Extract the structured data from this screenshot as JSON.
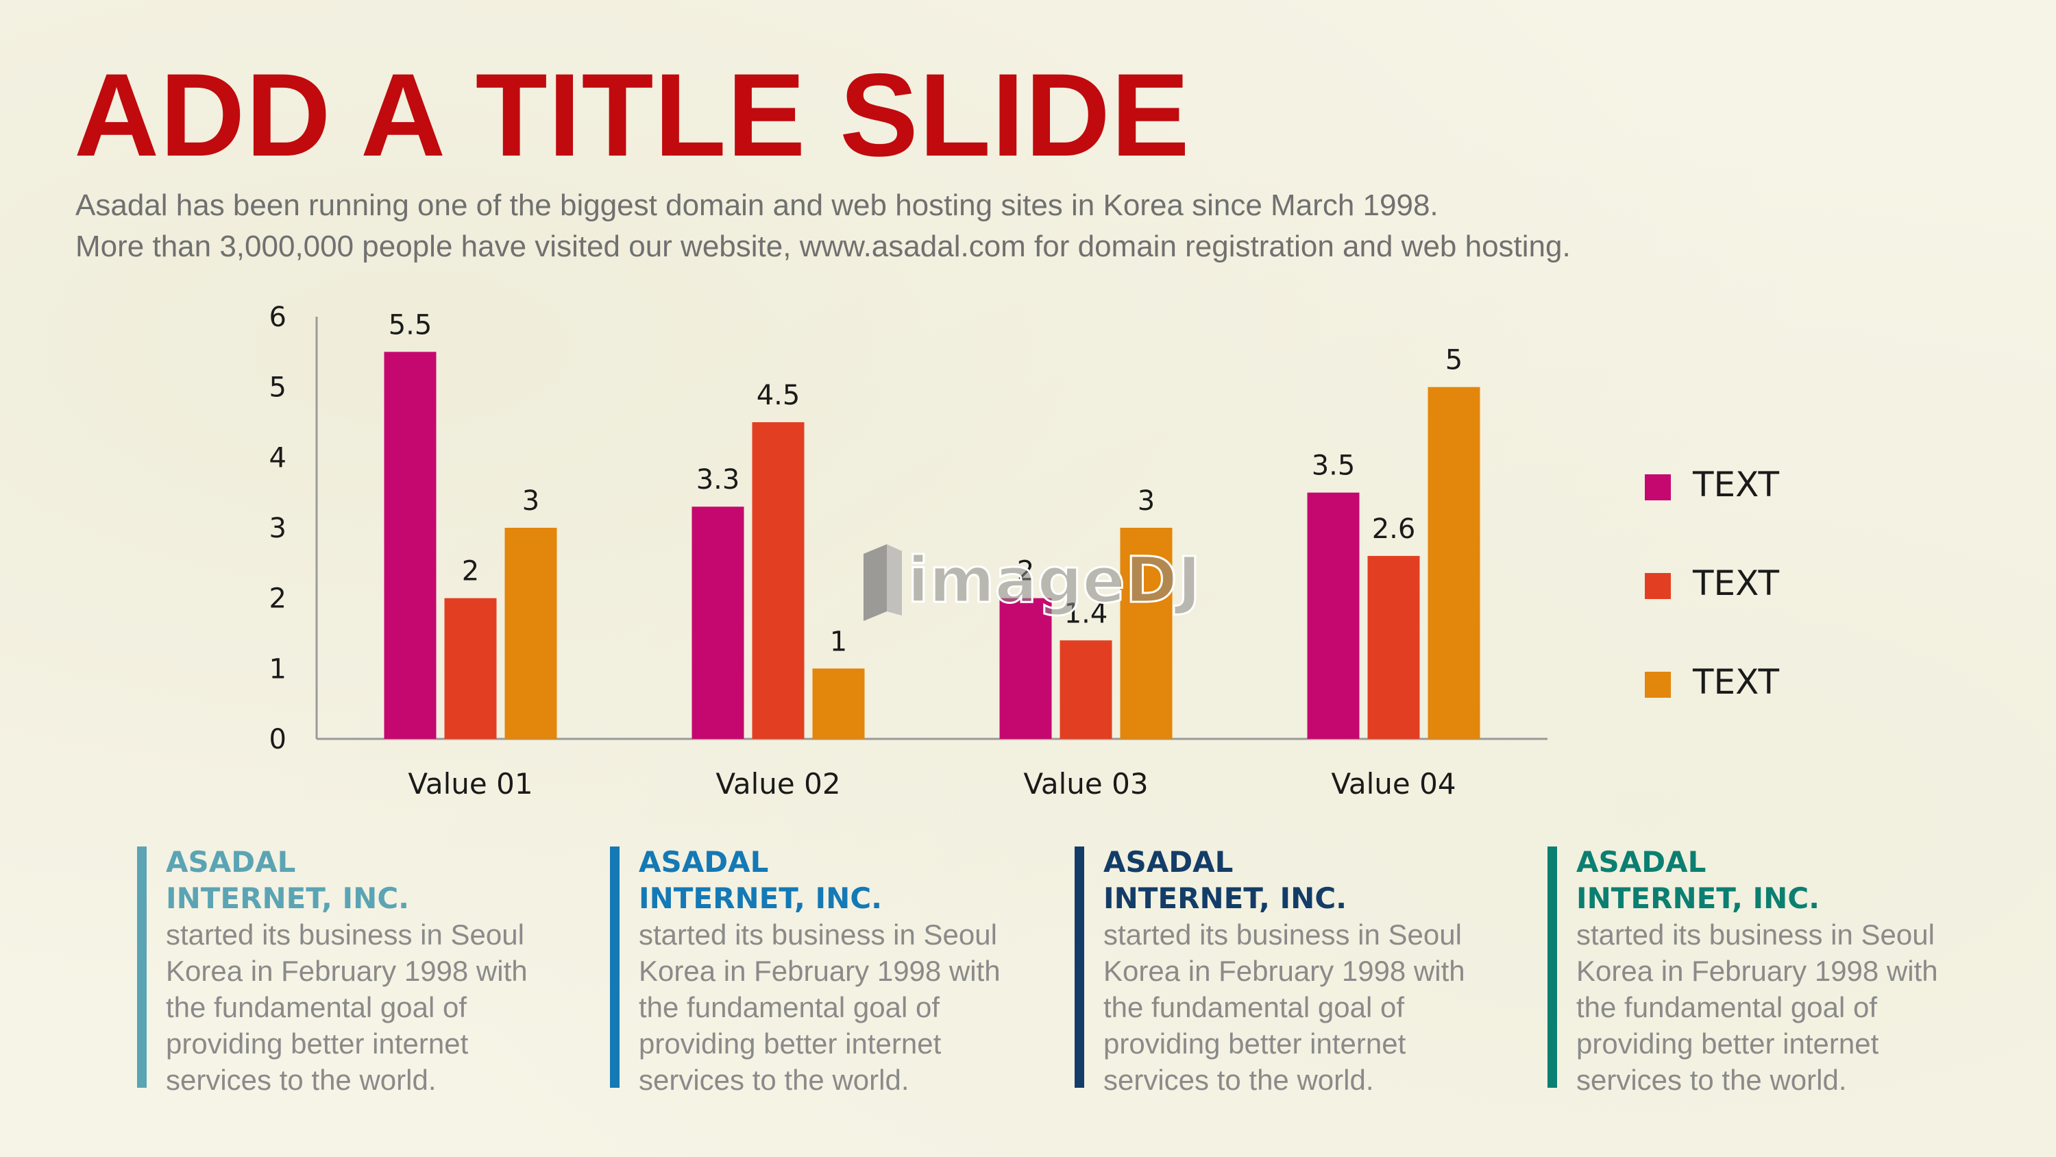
{
  "slide": {
    "title": "ADD A TITLE SLIDE",
    "subtitle_lines": [
      "Asadal has been running one of the biggest domain and web hosting sites in Korea since March 1998.",
      "More than 3,000,000 people have visited our website, www.asadal.com for domain registration and web hosting."
    ]
  },
  "chart_data": {
    "type": "bar",
    "categories": [
      "Value 01",
      "Value 02",
      "Value 03",
      "Value 04"
    ],
    "series": [
      {
        "name": "TEXT",
        "values": [
          5.5,
          3.3,
          2,
          3.5
        ],
        "color": "#c5086f"
      },
      {
        "name": "TEXT",
        "values": [
          2,
          4.5,
          1.4,
          2.6
        ],
        "color": "#e23f22"
      },
      {
        "name": "TEXT",
        "values": [
          3,
          1,
          3,
          5
        ],
        "color": "#e3860c"
      }
    ],
    "ylim": [
      0,
      6
    ],
    "yticks": [
      0,
      1,
      2,
      3,
      4,
      5,
      6
    ],
    "data_labels": true,
    "grid": false,
    "legend": "right",
    "title": "",
    "xlabel": "",
    "ylabel": ""
  },
  "cards": [
    {
      "head_lines": [
        "ASADAL",
        "INTERNET, INC."
      ],
      "body_lines": [
        "started its business in Seoul",
        "Korea  in February 1998 with",
        "the fundamental goal of",
        "providing better internet",
        "services to the world."
      ],
      "color": "#5aa4b4"
    },
    {
      "head_lines": [
        "ASADAL",
        "INTERNET, INC."
      ],
      "body_lines": [
        "started its business in Seoul",
        "Korea  in February 1998 with",
        "the fundamental goal of",
        "providing better internet",
        "services to the world."
      ],
      "color": "#1479b5"
    },
    {
      "head_lines": [
        "ASADAL",
        "INTERNET, INC."
      ],
      "body_lines": [
        "started its business in Seoul",
        "Korea  in February 1998 with",
        "the fundamental goal of",
        "providing better internet",
        "services to the world."
      ],
      "color": "#133d68"
    },
    {
      "head_lines": [
        "ASADAL",
        "INTERNET, INC."
      ],
      "body_lines": [
        "started its business in Seoul",
        "Korea  in February 1998 with",
        "the fundamental goal of",
        "providing better internet",
        "services to the world."
      ],
      "color": "#0b7f71"
    }
  ],
  "watermark": {
    "text": "imageDJ"
  }
}
